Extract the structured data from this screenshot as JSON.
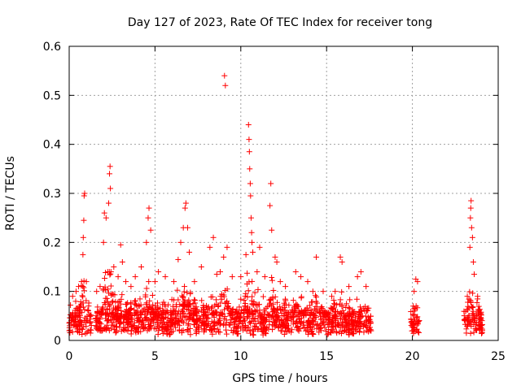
{
  "chart_data": {
    "type": "scatter",
    "title": "Day 127 of 2023, Rate Of TEC Index for receiver tong",
    "xlabel": "GPS time / hours",
    "ylabel": "ROTI / TECUs",
    "xlim": [
      0,
      25
    ],
    "ylim": [
      0,
      0.6
    ],
    "x_ticks": [
      0,
      5,
      10,
      15,
      20,
      25
    ],
    "y_ticks": [
      0,
      0.1,
      0.2,
      0.3,
      0.4,
      0.5,
      0.6
    ],
    "x_tick_labels": [
      "0",
      "5",
      "10",
      "15",
      "20",
      "25"
    ],
    "y_tick_labels": [
      "0",
      "0.1",
      "0.2",
      "0.3",
      "0.4",
      "0.5",
      "0.6"
    ],
    "grid": true,
    "marker": "plus",
    "color": "#ff0000",
    "coverage_hours": [
      [
        0.0,
        1.3
      ],
      [
        1.5,
        17.6
      ],
      [
        19.9,
        20.4
      ],
      [
        23.0,
        24.1
      ]
    ],
    "baseline_roti": 0.04,
    "peaks": [
      {
        "x": 0.2,
        "y": 0.09
      },
      {
        "x": 0.4,
        "y": 0.1
      },
      {
        "x": 0.55,
        "y": 0.11
      },
      {
        "x": 0.72,
        "y": 0.12
      },
      {
        "x": 0.8,
        "y": 0.175
      },
      {
        "x": 0.82,
        "y": 0.21
      },
      {
        "x": 0.85,
        "y": 0.245
      },
      {
        "x": 0.87,
        "y": 0.295
      },
      {
        "x": 0.9,
        "y": 0.3
      },
      {
        "x": 1.0,
        "y": 0.12
      },
      {
        "x": 1.6,
        "y": 0.1
      },
      {
        "x": 1.8,
        "y": 0.11
      },
      {
        "x": 2.0,
        "y": 0.2
      },
      {
        "x": 2.05,
        "y": 0.26
      },
      {
        "x": 2.15,
        "y": 0.25
      },
      {
        "x": 2.3,
        "y": 0.28
      },
      {
        "x": 2.35,
        "y": 0.34
      },
      {
        "x": 2.38,
        "y": 0.355
      },
      {
        "x": 2.4,
        "y": 0.31
      },
      {
        "x": 2.6,
        "y": 0.15
      },
      {
        "x": 2.85,
        "y": 0.13
      },
      {
        "x": 3.0,
        "y": 0.195
      },
      {
        "x": 3.1,
        "y": 0.16
      },
      {
        "x": 3.3,
        "y": 0.12
      },
      {
        "x": 3.6,
        "y": 0.11
      },
      {
        "x": 3.85,
        "y": 0.13
      },
      {
        "x": 4.2,
        "y": 0.15
      },
      {
        "x": 4.5,
        "y": 0.2
      },
      {
        "x": 4.6,
        "y": 0.25
      },
      {
        "x": 4.65,
        "y": 0.27
      },
      {
        "x": 4.75,
        "y": 0.225
      },
      {
        "x": 5.0,
        "y": 0.12
      },
      {
        "x": 5.2,
        "y": 0.14
      },
      {
        "x": 5.6,
        "y": 0.13
      },
      {
        "x": 6.1,
        "y": 0.12
      },
      {
        "x": 6.35,
        "y": 0.165
      },
      {
        "x": 6.5,
        "y": 0.2
      },
      {
        "x": 6.65,
        "y": 0.23
      },
      {
        "x": 6.75,
        "y": 0.27
      },
      {
        "x": 6.8,
        "y": 0.28
      },
      {
        "x": 6.9,
        "y": 0.23
      },
      {
        "x": 7.0,
        "y": 0.18
      },
      {
        "x": 7.3,
        "y": 0.12
      },
      {
        "x": 7.7,
        "y": 0.15
      },
      {
        "x": 8.2,
        "y": 0.19
      },
      {
        "x": 8.4,
        "y": 0.21
      },
      {
        "x": 8.6,
        "y": 0.135
      },
      {
        "x": 8.8,
        "y": 0.14
      },
      {
        "x": 9.0,
        "y": 0.17
      },
      {
        "x": 9.05,
        "y": 0.54
      },
      {
        "x": 9.1,
        "y": 0.52
      },
      {
        "x": 9.2,
        "y": 0.19
      },
      {
        "x": 9.5,
        "y": 0.13
      },
      {
        "x": 10.0,
        "y": 0.13
      },
      {
        "x": 10.3,
        "y": 0.175
      },
      {
        "x": 10.45,
        "y": 0.44
      },
      {
        "x": 10.48,
        "y": 0.41
      },
      {
        "x": 10.5,
        "y": 0.385
      },
      {
        "x": 10.52,
        "y": 0.35
      },
      {
        "x": 10.55,
        "y": 0.32
      },
      {
        "x": 10.57,
        "y": 0.295
      },
      {
        "x": 10.6,
        "y": 0.25
      },
      {
        "x": 10.63,
        "y": 0.22
      },
      {
        "x": 10.65,
        "y": 0.2
      },
      {
        "x": 10.7,
        "y": 0.18
      },
      {
        "x": 10.95,
        "y": 0.14
      },
      {
        "x": 11.1,
        "y": 0.19
      },
      {
        "x": 11.4,
        "y": 0.13
      },
      {
        "x": 11.7,
        "y": 0.275
      },
      {
        "x": 11.75,
        "y": 0.32
      },
      {
        "x": 11.8,
        "y": 0.225
      },
      {
        "x": 12.0,
        "y": 0.17
      },
      {
        "x": 12.1,
        "y": 0.16
      },
      {
        "x": 12.3,
        "y": 0.12
      },
      {
        "x": 12.6,
        "y": 0.11
      },
      {
        "x": 13.2,
        "y": 0.14
      },
      {
        "x": 13.5,
        "y": 0.13
      },
      {
        "x": 13.9,
        "y": 0.12
      },
      {
        "x": 14.2,
        "y": 0.1
      },
      {
        "x": 14.4,
        "y": 0.17
      },
      {
        "x": 14.8,
        "y": 0.1
      },
      {
        "x": 15.3,
        "y": 0.09
      },
      {
        "x": 15.5,
        "y": 0.1
      },
      {
        "x": 15.8,
        "y": 0.17
      },
      {
        "x": 15.9,
        "y": 0.16
      },
      {
        "x": 16.3,
        "y": 0.11
      },
      {
        "x": 16.8,
        "y": 0.13
      },
      {
        "x": 17.0,
        "y": 0.14
      },
      {
        "x": 17.3,
        "y": 0.11
      },
      {
        "x": 20.1,
        "y": 0.1
      },
      {
        "x": 20.2,
        "y": 0.125
      },
      {
        "x": 20.3,
        "y": 0.12
      },
      {
        "x": 23.2,
        "y": 0.09
      },
      {
        "x": 23.35,
        "y": 0.19
      },
      {
        "x": 23.38,
        "y": 0.25
      },
      {
        "x": 23.4,
        "y": 0.27
      },
      {
        "x": 23.42,
        "y": 0.285
      },
      {
        "x": 23.45,
        "y": 0.23
      },
      {
        "x": 23.5,
        "y": 0.21
      },
      {
        "x": 23.55,
        "y": 0.16
      },
      {
        "x": 23.6,
        "y": 0.135
      },
      {
        "x": 23.8,
        "y": 0.09
      }
    ]
  }
}
